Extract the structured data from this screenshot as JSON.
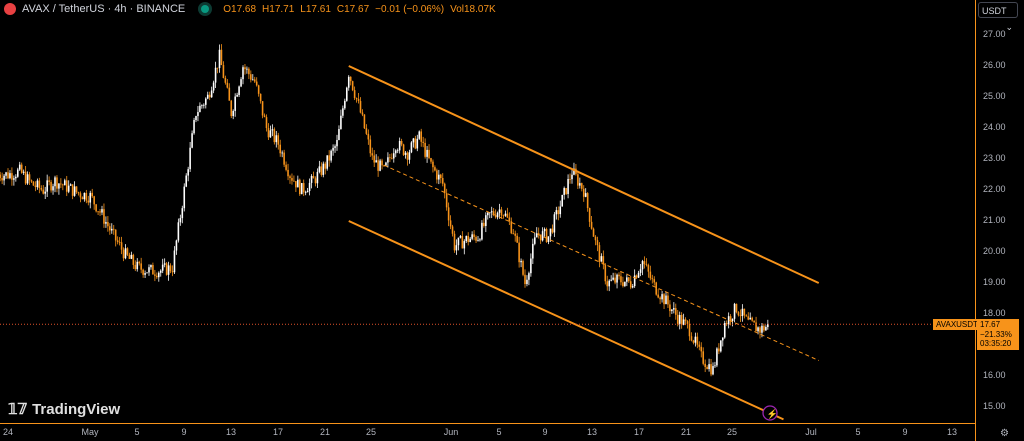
{
  "header": {
    "symbol": "AVAX / TetherUS · 4h · BINANCE",
    "open": "O17.68",
    "high": "H17.71",
    "low": "L17.61",
    "close": "C17.67",
    "change": "−0.01 (−0.06%)",
    "volume": "Vol18.07K"
  },
  "currency_selector": "USDT",
  "price_tag": {
    "symbol": "AVAXUSDT",
    "price": "17.67",
    "change_pct": "−21.33%",
    "countdown": "03:35:20"
  },
  "branding": "TradingView",
  "colors": {
    "up": "#ffffff",
    "down": "#f7931a",
    "channel": "#f7931a",
    "price_line": "#e0522a"
  },
  "chart_data": {
    "type": "candlestick",
    "interval": "4h",
    "y_ticks": [
      "27.00",
      "26.00",
      "25.00",
      "24.00",
      "23.00",
      "22.00",
      "21.00",
      "20.00",
      "19.00",
      "18.00",
      "16.00",
      "15.00"
    ],
    "x_ticks": [
      "24",
      "May",
      "5",
      "9",
      "13",
      "17",
      "21",
      "25",
      "Jun",
      "5",
      "9",
      "13",
      "17",
      "21",
      "25",
      "Jul",
      "5",
      "9",
      "13"
    ],
    "ylim": [
      14.6,
      27.5
    ],
    "daily_close_start": "Apr 24",
    "daily_close": [
      22.5,
      22.6,
      22.2,
      22.0,
      22.3,
      22.1,
      21.9,
      21.8,
      21.2,
      20.5,
      19.9,
      19.5,
      19.4,
      19.4,
      19.5,
      22.0,
      24.5,
      25.0,
      26.3,
      24.5,
      26.0,
      25.5,
      24.0,
      23.5,
      22.5,
      22.0,
      22.3,
      22.8,
      23.5,
      25.8,
      24.5,
      23.0,
      22.6,
      23.5,
      23.2,
      23.7,
      22.8,
      22.2,
      20.2,
      20.4,
      20.5,
      21.2,
      21.4,
      20.7,
      19.0,
      20.6,
      20.5,
      21.5,
      22.6,
      22.0,
      20.3,
      19.0,
      19.1,
      19.0,
      19.7,
      18.9,
      18.4,
      17.9,
      17.5,
      16.6,
      16.2,
      17.7,
      18.2,
      17.7,
      17.5,
      17.67
    ],
    "last_price": 17.67,
    "lines": [
      {
        "style": "solid",
        "from": [
          "May 23",
          26.0
        ],
        "to": [
          "Jul 2",
          19.0
        ]
      },
      {
        "style": "solid",
        "from": [
          "May 23",
          21.0
        ],
        "to": [
          "Jun 29",
          14.6
        ]
      },
      {
        "style": "dashed",
        "from": [
          "May 26",
          22.8
        ],
        "to": [
          "Jul 2",
          16.5
        ]
      }
    ]
  }
}
